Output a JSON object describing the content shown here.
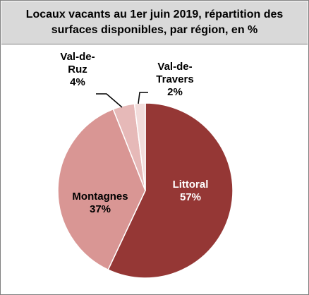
{
  "chart_data": {
    "type": "pie",
    "title": "Locaux vacants au 1er juin 2019, répartition des surfaces disponibles, par région, en %",
    "slices": [
      {
        "label": [
          "Littoral"
        ],
        "value": 57,
        "display": "57%",
        "color": "#953735",
        "text_color": "#ffffff"
      },
      {
        "label": [
          "Montagnes"
        ],
        "value": 37,
        "display": "37%",
        "color": "#d99694",
        "text_color": "#000000"
      },
      {
        "label": [
          "Val-de-",
          "Ruz"
        ],
        "value": 4,
        "display": "4%",
        "color": "#e6b9b8",
        "text_color": "#000000"
      },
      {
        "label": [
          "Val-de-",
          "Travers"
        ],
        "value": 2,
        "display": "2%",
        "color": "#f2dcdb",
        "text_color": "#000000"
      }
    ],
    "legend": "none"
  }
}
